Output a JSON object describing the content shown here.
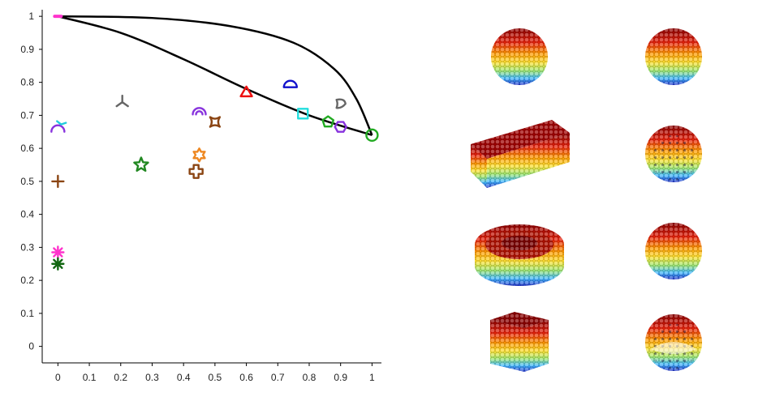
{
  "chart_data": {
    "type": "scatter",
    "title": "",
    "xlabel": "",
    "ylabel": "",
    "xlim": [
      -0.05,
      1.03
    ],
    "ylim": [
      -0.05,
      1.02
    ],
    "x_ticks": [
      "0",
      "0.1",
      "0.2",
      "0.3",
      "0.4",
      "0.5",
      "0.6",
      "0.7",
      "0.8",
      "0.9",
      "1"
    ],
    "y_ticks": [
      "0",
      "0.1",
      "0.2",
      "0.3",
      "0.4",
      "0.5",
      "0.6",
      "0.7",
      "0.8",
      "0.9",
      "1"
    ],
    "grid": false,
    "legend": "none",
    "curves": [
      {
        "name": "",
        "color": "#000000",
        "points": [
          [
            0,
            1
          ],
          [
            0.2,
            0.95
          ],
          [
            0.4,
            0.87
          ],
          [
            0.6,
            0.78
          ],
          [
            0.8,
            0.7
          ],
          [
            1,
            0.64
          ]
        ]
      },
      {
        "name": "",
        "color": "#000000",
        "points": [
          [
            0,
            1
          ],
          [
            0.3,
            0.995
          ],
          [
            0.55,
            0.97
          ],
          [
            0.75,
            0.92
          ],
          [
            0.88,
            0.84
          ],
          [
            0.95,
            0.75
          ],
          [
            1,
            0.64
          ]
        ]
      }
    ],
    "points": [
      {
        "x": 0,
        "y": 1,
        "marker": "dash",
        "color": "#ff33cc"
      },
      {
        "x": 0,
        "y": 0.66,
        "marker": "half-circle-down",
        "color": "#8833dd"
      },
      {
        "x": 0.01,
        "y": 0.67,
        "marker": "star-arm",
        "color": "#22ccdd"
      },
      {
        "x": 0,
        "y": 0.5,
        "marker": "plus",
        "color": "#8b4513"
      },
      {
        "x": 0,
        "y": 0.285,
        "marker": "asterisk",
        "color": "#ff33cc"
      },
      {
        "x": 0,
        "y": 0.25,
        "marker": "asterisk",
        "color": "#116611"
      },
      {
        "x": 0.205,
        "y": 0.74,
        "marker": "tri-star",
        "color": "#666666"
      },
      {
        "x": 0.265,
        "y": 0.55,
        "marker": "star5",
        "color": "#228822"
      },
      {
        "x": 0.44,
        "y": 0.53,
        "marker": "fat-plus",
        "color": "#8b4513"
      },
      {
        "x": 0.45,
        "y": 0.58,
        "marker": "star6",
        "color": "#ee8822"
      },
      {
        "x": 0.45,
        "y": 0.71,
        "marker": "arch",
        "color": "#8833dd"
      },
      {
        "x": 0.5,
        "y": 0.68,
        "marker": "concave-square",
        "color": "#8b4513"
      },
      {
        "x": 0.6,
        "y": 0.77,
        "marker": "triangle",
        "color": "#ee1111"
      },
      {
        "x": 0.74,
        "y": 0.79,
        "marker": "half-circle-up",
        "color": "#1111cc"
      },
      {
        "x": 0.78,
        "y": 0.705,
        "marker": "square",
        "color": "#22dddd"
      },
      {
        "x": 0.86,
        "y": 0.68,
        "marker": "pentagon",
        "color": "#22aa22"
      },
      {
        "x": 0.9,
        "y": 0.665,
        "marker": "hexagon",
        "color": "#8833dd"
      },
      {
        "x": 0.9,
        "y": 0.735,
        "marker": "rounded-triangle",
        "color": "#666666"
      },
      {
        "x": 1,
        "y": 0.64,
        "marker": "circle",
        "color": "#22aa22"
      }
    ]
  },
  "shape_renders": [
    {
      "name": "sphere"
    },
    {
      "name": "sphere"
    },
    {
      "name": "rod"
    },
    {
      "name": "sphere-porous"
    },
    {
      "name": "disc"
    },
    {
      "name": "sphere-rough"
    },
    {
      "name": "cube"
    },
    {
      "name": "sphere-hollow"
    }
  ]
}
